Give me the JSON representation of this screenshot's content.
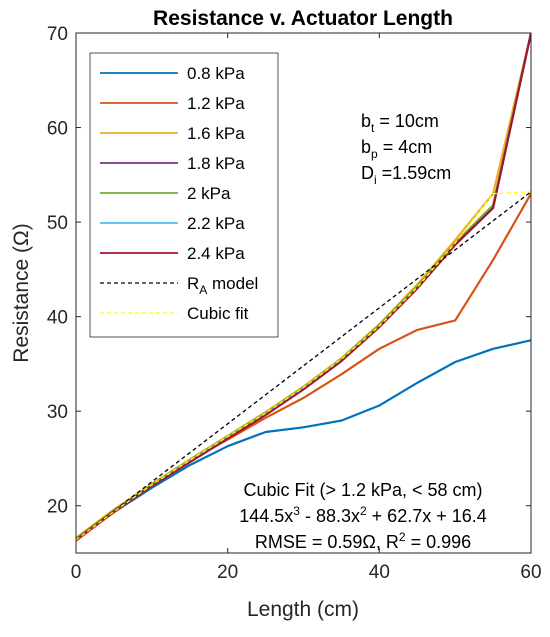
{
  "chart_data": {
    "type": "line",
    "title": "Resistance v. Actuator Length",
    "xlabel": "Length (cm)",
    "ylabel": "Resistance (Ω)",
    "xlim": [
      0,
      60
    ],
    "ylim": [
      15,
      70
    ],
    "xticks": [
      0,
      20,
      40,
      60
    ],
    "yticks": [
      20,
      30,
      40,
      50,
      60,
      70
    ],
    "grid": false,
    "legend_position": "top-left",
    "series": [
      {
        "name": "0.8 kPa",
        "color": "#0072BD",
        "style": "solid",
        "x": [
          0,
          5,
          10,
          15,
          20,
          25,
          30,
          35,
          40,
          45,
          50,
          55,
          60
        ],
        "y": [
          16.5,
          19.3,
          21.9,
          24.3,
          26.3,
          27.8,
          28.3,
          29.0,
          30.6,
          33.0,
          35.2,
          36.6,
          37.5
        ]
      },
      {
        "name": "1.2 kPa",
        "color": "#D95319",
        "style": "solid",
        "x": [
          0,
          5,
          10,
          15,
          20,
          25,
          30,
          35,
          40,
          45,
          50,
          55,
          60
        ],
        "y": [
          16.3,
          19.3,
          22.3,
          24.8,
          27.0,
          29.3,
          31.4,
          33.9,
          36.6,
          38.6,
          39.6,
          46.0,
          53.0
        ]
      },
      {
        "name": "1.6 kPa",
        "color": "#EDB120",
        "style": "solid",
        "x": [
          0,
          5,
          10,
          15,
          20,
          25,
          30,
          35,
          40,
          45,
          50,
          55,
          60
        ],
        "y": [
          16.6,
          19.6,
          22.3,
          24.9,
          27.4,
          29.9,
          32.6,
          35.6,
          39.2,
          43.4,
          48.1,
          53.0,
          70.0
        ]
      },
      {
        "name": "1.8 kPa",
        "color": "#7E2F8E",
        "style": "solid",
        "x": [
          0,
          5,
          10,
          15,
          20,
          25,
          30,
          35,
          40,
          45,
          50,
          55,
          60
        ],
        "y": [
          16.5,
          19.4,
          22.2,
          24.7,
          27.2,
          29.7,
          32.4,
          35.4,
          39.0,
          43.1,
          47.7,
          51.6,
          70.0
        ]
      },
      {
        "name": "2 kPa",
        "color": "#77AC30",
        "style": "solid",
        "x": [
          0,
          5,
          10,
          15,
          20,
          25,
          30,
          35,
          40,
          45,
          50,
          55,
          60
        ],
        "y": [
          16.5,
          19.5,
          22.2,
          24.8,
          27.3,
          29.8,
          32.5,
          35.5,
          39.1,
          43.2,
          47.8,
          51.8,
          70.0
        ]
      },
      {
        "name": "2.2 kPa",
        "color": "#4DBEEE",
        "style": "solid",
        "x": [
          0,
          5,
          10,
          15,
          20,
          25,
          30,
          35,
          40,
          45,
          50,
          55,
          60
        ],
        "y": [
          16.4,
          19.4,
          22.1,
          24.7,
          27.2,
          29.7,
          32.4,
          35.4,
          38.9,
          43.0,
          47.6,
          51.5,
          70.0
        ]
      },
      {
        "name": "2.4 kPa",
        "color": "#A2142F",
        "style": "solid",
        "x": [
          0,
          5,
          10,
          15,
          20,
          25,
          30,
          35,
          40,
          45,
          50,
          55,
          60
        ],
        "y": [
          16.4,
          19.4,
          22.1,
          24.6,
          27.1,
          29.6,
          32.3,
          35.3,
          38.9,
          43.0,
          47.6,
          51.5,
          70.0
        ]
      },
      {
        "name": "R_A model",
        "color": "#000000",
        "style": "dashed",
        "x": [
          0,
          60
        ],
        "y": [
          16.4,
          53.2
        ]
      },
      {
        "name": "Cubic fit",
        "color": "#FFFF00",
        "style": "dashed",
        "x": [
          0,
          5,
          10,
          15,
          20,
          25,
          30,
          35,
          40,
          45,
          50,
          55,
          60
        ],
        "y": [
          16.4,
          19.4,
          22.2,
          24.8,
          27.3,
          29.8,
          32.5,
          35.5,
          39.0,
          43.1,
          47.8,
          53.0,
          53.2
        ]
      }
    ],
    "annotations": {
      "params": [
        "b_t = 10cm",
        "b_p = 4cm",
        "D_i =1.59cm"
      ],
      "fit_lines": [
        "Cubic Fit (> 1.2 kPa, < 58 cm)",
        "144.5x^3 - 88.3x^2 + 62.7x + 16.4",
        "RMSE = 0.59Ω, R^2 = 0.996"
      ]
    }
  }
}
